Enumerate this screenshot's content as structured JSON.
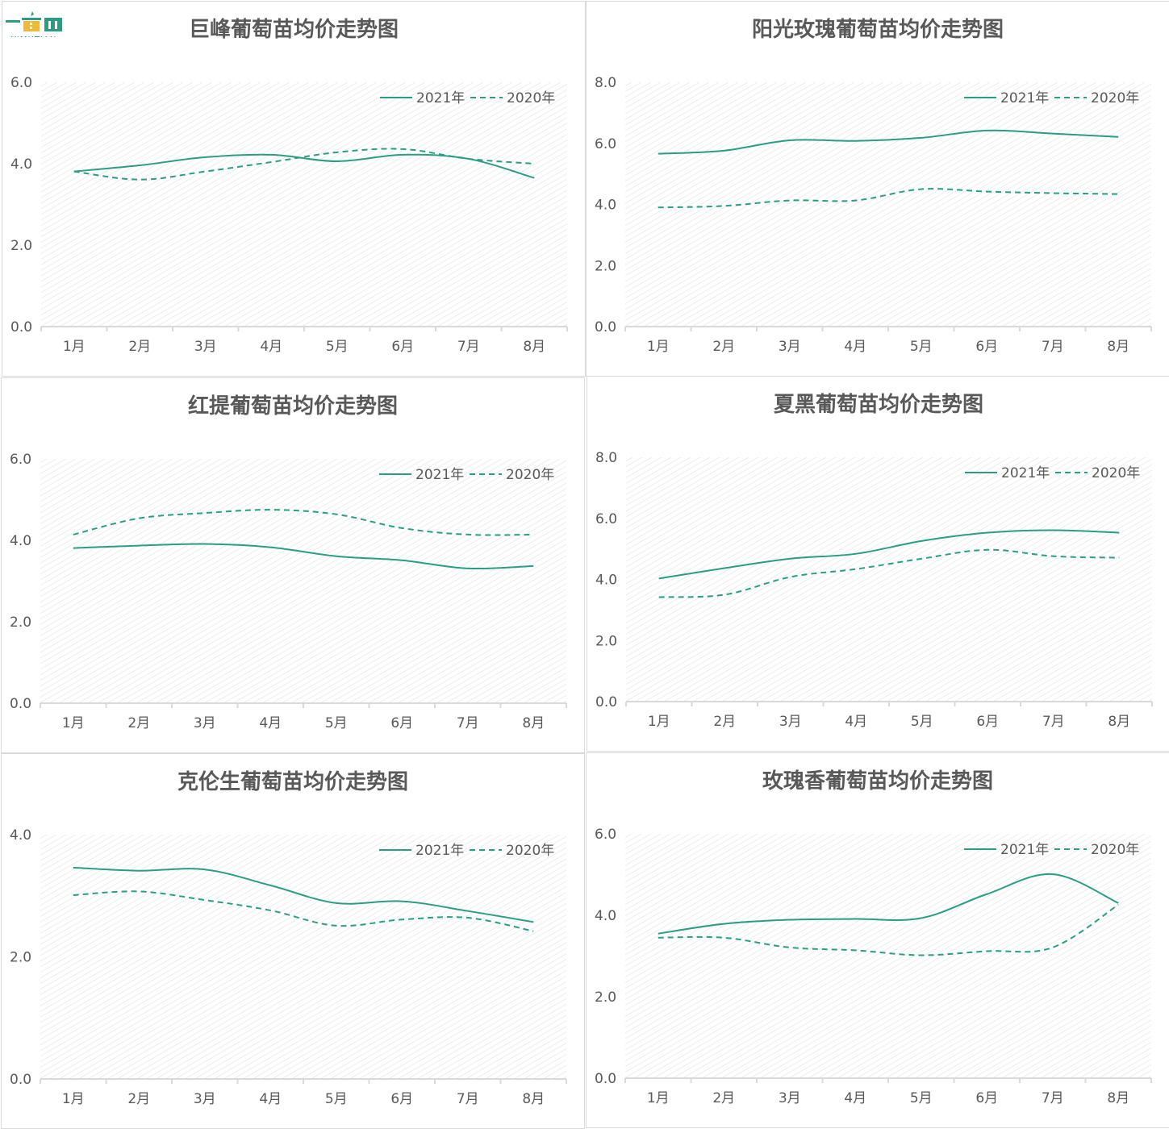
{
  "brand": {
    "logo_text": "YIMUTIAN"
  },
  "colors": {
    "line": "#2a9d84",
    "axis": "#d9d9d9",
    "hatch": "#ececec",
    "text": "#595959"
  },
  "chart_data": [
    {
      "type": "line",
      "title": "巨峰葡萄苗均价走势图",
      "categories": [
        "1月",
        "2月",
        "3月",
        "4月",
        "5月",
        "6月",
        "7月",
        "8月"
      ],
      "ylim": [
        0,
        6
      ],
      "yticks": [
        "0.0",
        "2.0",
        "4.0",
        "6.0"
      ],
      "legend": "top-right",
      "series": [
        {
          "name": "2021年",
          "style": "solid",
          "values": [
            3.81,
            3.96,
            4.16,
            4.22,
            4.06,
            4.22,
            4.12,
            3.65
          ]
        },
        {
          "name": "2020年",
          "style": "dashed",
          "values": [
            3.81,
            3.61,
            3.81,
            4.04,
            4.28,
            4.36,
            4.12,
            4.0
          ]
        }
      ]
    },
    {
      "type": "line",
      "title": "阳光玫瑰葡萄苗均价走势图",
      "categories": [
        "1月",
        "2月",
        "3月",
        "4月",
        "5月",
        "6月",
        "7月",
        "8月"
      ],
      "ylim": [
        0,
        8
      ],
      "yticks": [
        "0.0",
        "2.0",
        "4.0",
        "6.0",
        "8.0"
      ],
      "legend": "top-right",
      "series": [
        {
          "name": "2021年",
          "style": "solid",
          "values": [
            5.66,
            5.76,
            6.1,
            6.08,
            6.18,
            6.42,
            6.32,
            6.21
          ]
        },
        {
          "name": "2020年",
          "style": "dashed",
          "values": [
            3.9,
            3.95,
            4.13,
            4.13,
            4.5,
            4.42,
            4.37,
            4.34
          ]
        }
      ]
    },
    {
      "type": "line",
      "title": "红提葡萄苗均价走势图",
      "categories": [
        "1月",
        "2月",
        "3月",
        "4月",
        "5月",
        "6月",
        "7月",
        "8月"
      ],
      "ylim": [
        0,
        6
      ],
      "yticks": [
        "0.0",
        "2.0",
        "4.0",
        "6.0"
      ],
      "legend": "top-right",
      "series": [
        {
          "name": "2021年",
          "style": "solid",
          "values": [
            3.81,
            3.87,
            3.91,
            3.83,
            3.61,
            3.51,
            3.31,
            3.37
          ]
        },
        {
          "name": "2020年",
          "style": "dashed",
          "values": [
            4.14,
            4.54,
            4.67,
            4.75,
            4.64,
            4.3,
            4.14,
            4.14
          ]
        }
      ]
    },
    {
      "type": "line",
      "title": "夏黑葡萄苗均价走势图",
      "categories": [
        "1月",
        "2月",
        "3月",
        "4月",
        "5月",
        "6月",
        "7月",
        "8月"
      ],
      "ylim": [
        0,
        8
      ],
      "yticks": [
        "0.0",
        "2.0",
        "4.0",
        "6.0",
        "8.0"
      ],
      "legend": "top-right",
      "series": [
        {
          "name": "2021年",
          "style": "solid",
          "values": [
            4.03,
            4.37,
            4.68,
            4.84,
            5.26,
            5.53,
            5.61,
            5.53
          ]
        },
        {
          "name": "2020年",
          "style": "dashed",
          "values": [
            3.42,
            3.5,
            4.08,
            4.34,
            4.68,
            4.97,
            4.76,
            4.71
          ]
        }
      ]
    },
    {
      "type": "line",
      "title": "克伦生葡萄苗均价走势图",
      "categories": [
        "1月",
        "2月",
        "3月",
        "4月",
        "5月",
        "6月",
        "7月",
        "8月"
      ],
      "ylim": [
        0,
        4
      ],
      "yticks": [
        "0.0",
        "2.0",
        "4.0"
      ],
      "legend": "top-right",
      "series": [
        {
          "name": "2021年",
          "style": "solid",
          "values": [
            3.46,
            3.41,
            3.43,
            3.17,
            2.88,
            2.91,
            2.75,
            2.57
          ]
        },
        {
          "name": "2020年",
          "style": "dashed",
          "values": [
            3.01,
            3.07,
            2.93,
            2.76,
            2.51,
            2.61,
            2.64,
            2.42
          ]
        }
      ]
    },
    {
      "type": "line",
      "title": "玫瑰香葡萄苗均价走势图",
      "categories": [
        "1月",
        "2月",
        "3月",
        "4月",
        "5月",
        "6月",
        "7月",
        "8月"
      ],
      "ylim": [
        0,
        6
      ],
      "yticks": [
        "0.0",
        "2.0",
        "4.0",
        "6.0"
      ],
      "legend": "top-right",
      "series": [
        {
          "name": "2021年",
          "style": "solid",
          "values": [
            3.55,
            3.79,
            3.89,
            3.91,
            3.93,
            4.52,
            5.01,
            4.3
          ]
        },
        {
          "name": "2020年",
          "style": "dashed",
          "values": [
            3.45,
            3.45,
            3.21,
            3.14,
            3.02,
            3.12,
            3.21,
            4.26
          ]
        }
      ]
    }
  ]
}
